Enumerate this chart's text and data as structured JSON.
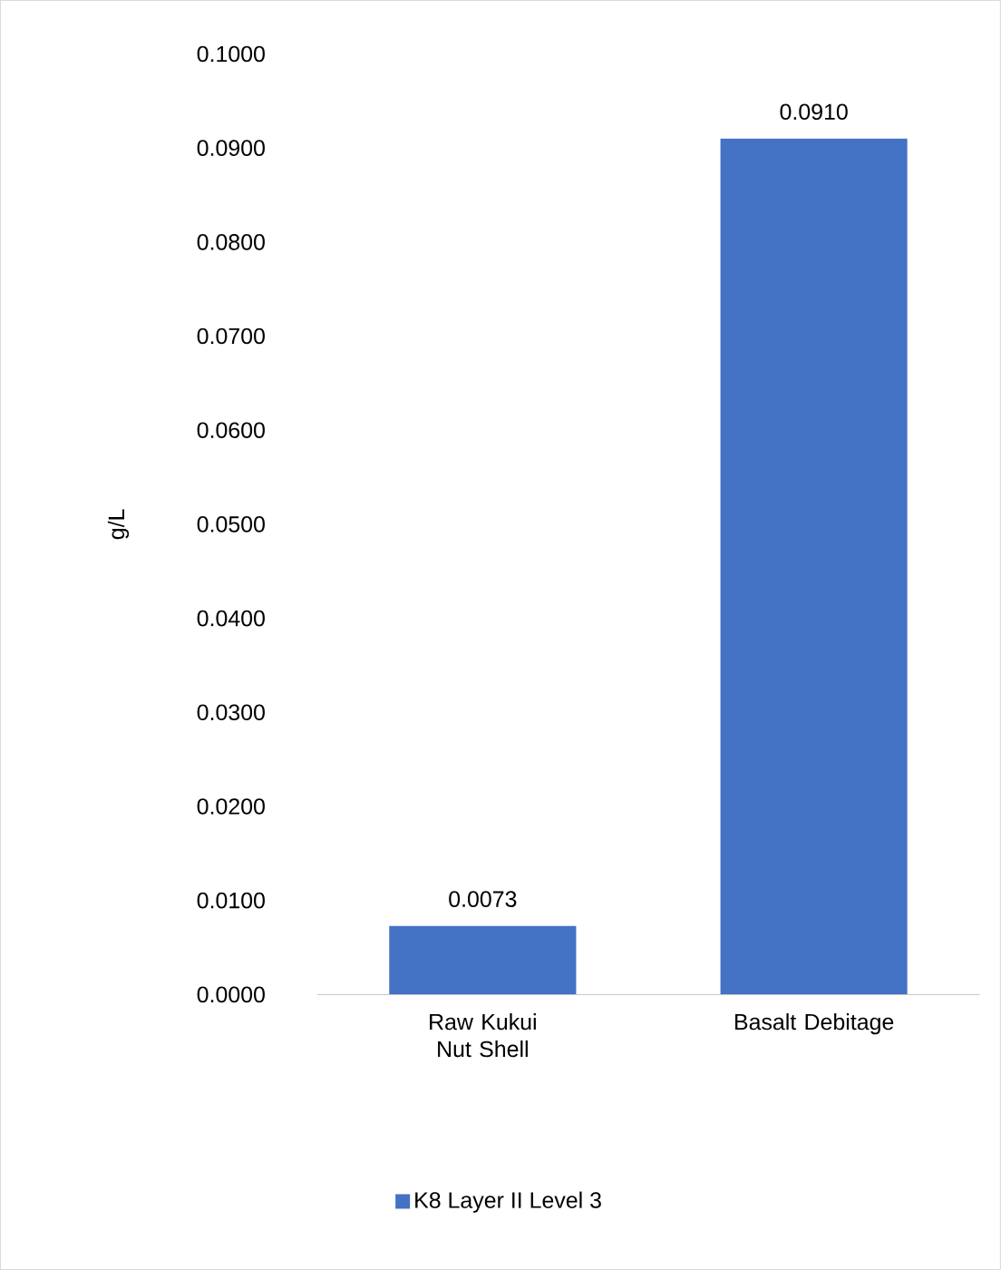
{
  "chart_data": {
    "type": "bar",
    "ylabel": "g/L",
    "categories": [
      "Raw Kukui Nut Shell",
      "Basalt Debitage"
    ],
    "series": [
      {
        "name": "K8 Layer II Level 3",
        "color": "#4472c4",
        "values": [
          0.0073,
          0.091
        ],
        "value_labels": [
          "0.0073",
          "0.0910"
        ]
      }
    ],
    "ylim": [
      0,
      0.1
    ],
    "yticks": [
      {
        "value": 0,
        "label": "0.0000"
      },
      {
        "value": 0.01,
        "label": "0.0100"
      },
      {
        "value": 0.02,
        "label": "0.0200"
      },
      {
        "value": 0.03,
        "label": "0.0300"
      },
      {
        "value": 0.04,
        "label": "0.0400"
      },
      {
        "value": 0.05,
        "label": "0.0500"
      },
      {
        "value": 0.06,
        "label": "0.0600"
      },
      {
        "value": 0.07,
        "label": "0.0700"
      },
      {
        "value": 0.08,
        "label": "0.0800"
      },
      {
        "value": 0.09,
        "label": "0.0900"
      },
      {
        "value": 0.1,
        "label": "0.1000"
      }
    ],
    "grid": false,
    "legend": "bottom"
  }
}
